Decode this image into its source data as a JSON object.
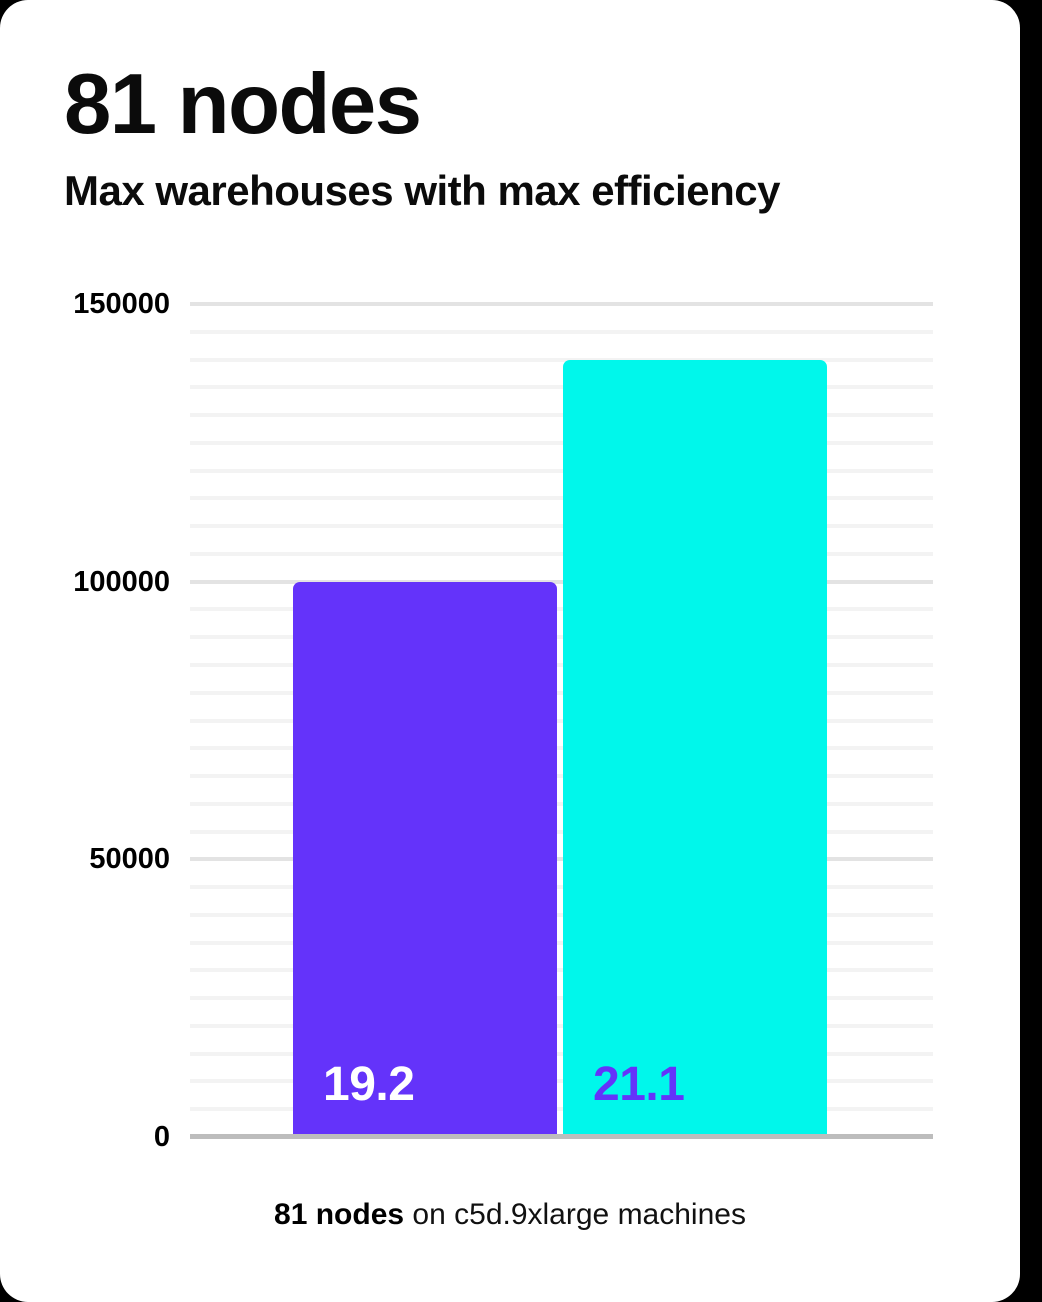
{
  "header": {
    "title": "81 nodes",
    "subtitle": "Max warehouses with max efficiency"
  },
  "caption": {
    "bold": "81 nodes",
    "rest": " on c5d.9xlarge machines"
  },
  "colors": {
    "page_background": "#000000",
    "card_background": "#ffffff",
    "grid_minor": "#f3f3f3",
    "grid_major": "#e3e3e3",
    "axis_line": "#bdbdbd",
    "text": "#0b0b0b"
  },
  "chart_data": {
    "type": "bar",
    "title": "81 nodes",
    "subtitle": "Max warehouses with max efficiency",
    "categories": [
      "19.2",
      "21.1"
    ],
    "values": [
      100000,
      140000
    ],
    "bar_labels": [
      "19.2",
      "21.1"
    ],
    "bar_colors": [
      "#6433fa",
      "#00f7eb"
    ],
    "bar_label_colors": [
      "#ffffff",
      "#6433fa"
    ],
    "xlabel": "",
    "ylabel": "",
    "ylim": [
      0,
      150000
    ],
    "yticks": [
      0,
      50000,
      100000,
      150000
    ],
    "grid_step": 5000,
    "grid": true,
    "legend": false,
    "caption": "81 nodes on c5d.9xlarge machines"
  }
}
